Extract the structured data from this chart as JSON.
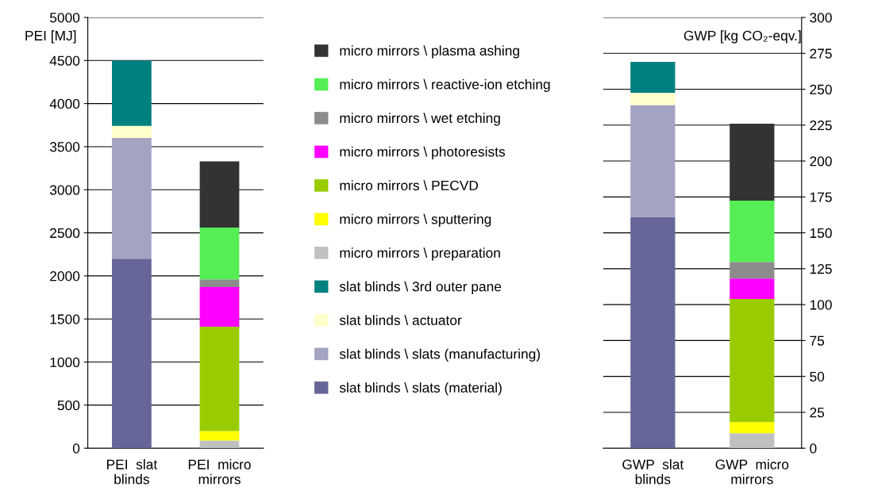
{
  "chart_data": [
    {
      "type": "bar",
      "stacked": true,
      "categories": [
        "PEI  slat\nblinds",
        "PEI  micro\nmirrors"
      ],
      "ylabel": "PEI [MJ]",
      "ylim": [
        0,
        5000
      ],
      "yticks": [
        0,
        500,
        1000,
        1500,
        2000,
        2500,
        3000,
        3500,
        4000,
        4500,
        5000
      ],
      "grid": "y",
      "legend": "right",
      "series": [
        {
          "name": "slat blinds \\ slats (material)",
          "color": "#666699",
          "values": [
            2200,
            0
          ]
        },
        {
          "name": "slat blinds \\ slats (manufacturing)",
          "color": "#a3a3c2",
          "values": [
            1400,
            0
          ]
        },
        {
          "name": "slat blinds \\ actuator",
          "color": "#ffffcc",
          "values": [
            140,
            0
          ]
        },
        {
          "name": "slat blinds \\ 3rd outer pane",
          "color": "#008080",
          "values": [
            760,
            0
          ]
        },
        {
          "name": "micro mirrors \\ preparation",
          "color": "#c0c0c0",
          "values": [
            0,
            90
          ]
        },
        {
          "name": "micro mirrors \\ sputtering",
          "color": "#ffff00",
          "values": [
            0,
            110
          ]
        },
        {
          "name": "micro mirrors \\ PECVD",
          "color": "#99cc00",
          "values": [
            0,
            1210
          ]
        },
        {
          "name": "micro mirrors \\ photoresists",
          "color": "#ff00ff",
          "values": [
            0,
            460
          ]
        },
        {
          "name": "micro mirrors \\ wet etching",
          "color": "#8c8c8c",
          "values": [
            0,
            90
          ]
        },
        {
          "name": "micro mirrors \\ reactive-ion etching",
          "color": "#55ee55",
          "values": [
            0,
            600
          ]
        },
        {
          "name": "micro mirrors \\ plasma ashing",
          "color": "#333333",
          "values": [
            0,
            770
          ]
        }
      ]
    },
    {
      "type": "bar",
      "stacked": true,
      "categories": [
        "GWP  slat\nblinds",
        "GWP  micro\nmirrors"
      ],
      "ylabel": "GWP [kg CO₂-eqv.]",
      "ylim": [
        0,
        300
      ],
      "yticks": [
        0,
        25,
        50,
        75,
        100,
        125,
        150,
        175,
        200,
        225,
        250,
        275,
        300
      ],
      "grid": "y",
      "series": [
        {
          "color": "#666699",
          "values": [
            161,
            0
          ]
        },
        {
          "color": "#a3a3c2",
          "values": [
            78,
            0
          ]
        },
        {
          "color": "#ffffcc",
          "values": [
            8.5,
            0
          ]
        },
        {
          "color": "#008080",
          "values": [
            21.5,
            0
          ]
        },
        {
          "color": "#c0c0c0",
          "values": [
            0,
            10.5
          ]
        },
        {
          "color": "#ffff00",
          "values": [
            0,
            7.7
          ]
        },
        {
          "color": "#99cc00",
          "values": [
            0,
            85.7
          ]
        },
        {
          "color": "#ff00ff",
          "values": [
            0,
            14.3
          ]
        },
        {
          "color": "#8c8c8c",
          "values": [
            0,
            11.6
          ]
        },
        {
          "color": "#55ee55",
          "values": [
            0,
            42.6
          ]
        },
        {
          "color": "#333333",
          "values": [
            0,
            53.6
          ]
        }
      ]
    }
  ]
}
